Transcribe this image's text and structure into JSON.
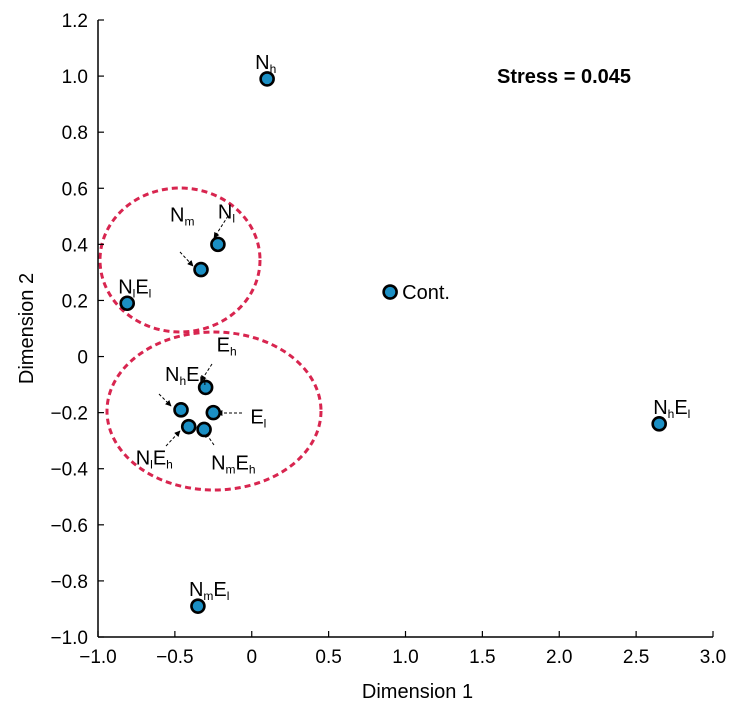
{
  "chart_data": {
    "type": "scatter",
    "xlabel": "Dimension 1",
    "ylabel": "Dimension 2",
    "xlim": [
      -1.0,
      3.0
    ],
    "ylim": [
      -1.0,
      1.2
    ],
    "xticks": [
      -1.0,
      -0.5,
      0,
      0.5,
      1.0,
      1.5,
      2.0,
      2.5,
      3.0
    ],
    "xtick_labels": [
      "−1.0",
      "−0.5",
      "0",
      "0.5",
      "1.0",
      "1.5",
      "2.0",
      "2.5",
      "3.0"
    ],
    "yticks": [
      -1.0,
      -0.8,
      -0.6,
      -0.4,
      -0.2,
      0,
      0.2,
      0.4,
      0.6,
      0.8,
      1.0,
      1.2
    ],
    "ytick_labels": [
      "−1.0",
      "−0.8",
      "−0.6",
      "−0.4",
      "−0.2",
      "0",
      "0.2",
      "0.4",
      "0.6",
      "0.8",
      "1.0",
      "1.2"
    ],
    "grid": false,
    "annotation": "Stress = 0.045",
    "point_color": "#1b8fc4",
    "cluster_color": "#d8254f",
    "points": [
      {
        "base": "N",
        "sub": "h",
        "label": "Nh",
        "x": 0.1,
        "y": 0.99
      },
      {
        "base": "N",
        "sub": "l",
        "label": "Nl",
        "x": -0.22,
        "y": 0.4
      },
      {
        "base": "N",
        "sub": "m",
        "label": "Nm",
        "x": -0.33,
        "y": 0.31
      },
      {
        "base": "N",
        "sub": "l",
        "base2": "E",
        "sub2": "l",
        "label": "NlEl",
        "x": -0.81,
        "y": 0.19
      },
      {
        "base": "Cont.",
        "label": "Cont.",
        "x": 0.9,
        "y": 0.23
      },
      {
        "base": "E",
        "sub": "h",
        "label": "Eh",
        "x": -0.3,
        "y": -0.11
      },
      {
        "base": "N",
        "sub": "h",
        "base2": "E",
        "sub2": "h",
        "label": "NhEh",
        "x": -0.46,
        "y": -0.19
      },
      {
        "base": "E",
        "sub": "l",
        "label": "El",
        "x": -0.25,
        "y": -0.2
      },
      {
        "base": "N",
        "sub": "l",
        "base2": "E",
        "sub2": "h",
        "label": "NlEh",
        "x": -0.41,
        "y": -0.25
      },
      {
        "base": "N",
        "sub": "m",
        "base2": "E",
        "sub2": "h",
        "label": "NmEh",
        "x": -0.31,
        "y": -0.26
      },
      {
        "base": "N",
        "sub": "h",
        "base2": "E",
        "sub2": "l",
        "label": "NhEl",
        "x": 2.65,
        "y": -0.24
      },
      {
        "base": "N",
        "sub": "m",
        "base2": "E",
        "sub2": "l",
        "label": "NmEl",
        "x": -0.35,
        "y": -0.89
      }
    ]
  }
}
